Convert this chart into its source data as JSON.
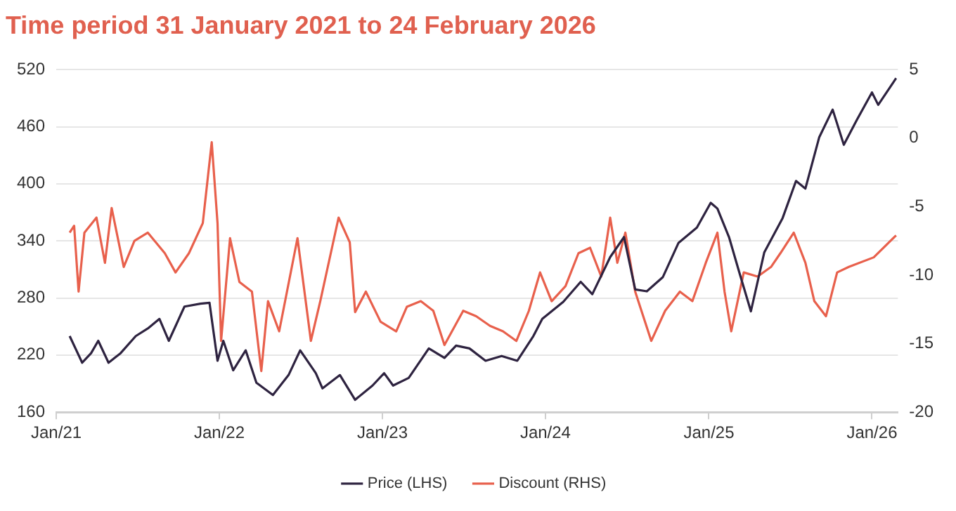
{
  "chart_data": {
    "type": "line",
    "title": "Time period 31 January 2021 to 24 February 2026",
    "xlim": [
      "2021-01-01",
      "2026-02-28"
    ],
    "xticks": [
      {
        "value": "2021-01-01",
        "label": "Jan/21"
      },
      {
        "value": "2022-01-01",
        "label": "Jan/22"
      },
      {
        "value": "2023-01-01",
        "label": "Jan/23"
      },
      {
        "value": "2024-01-01",
        "label": "Jan/24"
      },
      {
        "value": "2025-01-01",
        "label": "Jan/25"
      },
      {
        "value": "2026-01-01",
        "label": "Jan/26"
      }
    ],
    "ylim": [
      160,
      520
    ],
    "yticks": [
      160,
      220,
      280,
      340,
      400,
      460,
      520
    ],
    "y2lim": [
      -20,
      5
    ],
    "y2ticks": [
      -20,
      -15,
      -10,
      -5,
      0,
      5
    ],
    "grid": "y",
    "legend": "bottom",
    "marker": "none",
    "line_style": "solid",
    "series": [
      {
        "name": "Price (LHS)",
        "color": "#2e2340",
        "axis": "y",
        "x": [
          "2021-01-31",
          "2021-02-28",
          "2021-03-20",
          "2021-04-05",
          "2021-04-28",
          "2021-05-25",
          "2021-06-28",
          "2021-07-25",
          "2021-08-20",
          "2021-09-10",
          "2021-10-15",
          "2021-11-20",
          "2021-12-10",
          "2021-12-28",
          "2022-01-10",
          "2022-02-01",
          "2022-03-01",
          "2022-03-25",
          "2022-05-01",
          "2022-06-05",
          "2022-07-01",
          "2022-08-05",
          "2022-08-20",
          "2022-09-28",
          "2022-11-01",
          "2022-12-10",
          "2023-01-05",
          "2023-01-25",
          "2023-03-01",
          "2023-04-15",
          "2023-05-20",
          "2023-06-15",
          "2023-07-15",
          "2023-08-20",
          "2023-09-25",
          "2023-10-30",
          "2023-12-05",
          "2023-12-25",
          "2024-02-10",
          "2024-03-20",
          "2024-04-15",
          "2024-05-25",
          "2024-06-25",
          "2024-07-20",
          "2024-08-15",
          "2024-09-20",
          "2024-10-25",
          "2024-12-05",
          "2025-01-05",
          "2025-01-20",
          "2025-02-15",
          "2025-03-10",
          "2025-04-05",
          "2025-05-05",
          "2025-06-15",
          "2025-07-15",
          "2025-08-05",
          "2025-09-05",
          "2025-10-05",
          "2025-10-30",
          "2025-11-28",
          "2026-01-01",
          "2026-01-15",
          "2026-02-24"
        ],
        "values": [
          240,
          212,
          222,
          235,
          212,
          222,
          240,
          248,
          258,
          235,
          271,
          274,
          275,
          214,
          235,
          204,
          225,
          191,
          178,
          199,
          225,
          201,
          185,
          199,
          173,
          188,
          201,
          188,
          196,
          227,
          217,
          230,
          227,
          214,
          219,
          214,
          240,
          258,
          276,
          297,
          284,
          323,
          344,
          289,
          287,
          302,
          338,
          354,
          380,
          374,
          344,
          307,
          266,
          328,
          364,
          403,
          395,
          449,
          478,
          441,
          467,
          496,
          483,
          511
        ]
      },
      {
        "name": "Discount (RHS)",
        "color": "#e8604c",
        "axis": "y2",
        "x": [
          "2021-01-31",
          "2021-02-10",
          "2021-02-20",
          "2021-03-05",
          "2021-04-01",
          "2021-04-20",
          "2021-05-05",
          "2021-06-01",
          "2021-06-25",
          "2021-07-25",
          "2021-09-01",
          "2021-09-25",
          "2021-10-25",
          "2021-11-25",
          "2021-12-15",
          "2021-12-28",
          "2022-01-05",
          "2022-01-25",
          "2022-02-15",
          "2022-03-15",
          "2022-04-05",
          "2022-04-20",
          "2022-05-15",
          "2022-06-25",
          "2022-07-25",
          "2022-08-15",
          "2022-09-25",
          "2022-10-20",
          "2022-11-01",
          "2022-11-25",
          "2022-12-28",
          "2023-02-01",
          "2023-02-25",
          "2023-03-28",
          "2023-04-25",
          "2023-05-20",
          "2023-07-01",
          "2023-07-30",
          "2023-08-30",
          "2023-09-28",
          "2023-10-28",
          "2023-11-25",
          "2023-12-20",
          "2024-01-15",
          "2024-02-15",
          "2024-03-15",
          "2024-04-10",
          "2024-05-05",
          "2024-05-25",
          "2024-06-10",
          "2024-06-28",
          "2024-07-20",
          "2024-08-25",
          "2024-09-25",
          "2024-10-28",
          "2024-11-25",
          "2024-12-25",
          "2025-01-20",
          "2025-02-05",
          "2025-02-20",
          "2025-03-20",
          "2025-04-20",
          "2025-05-20",
          "2025-06-10",
          "2025-07-10",
          "2025-08-05",
          "2025-08-25",
          "2025-09-20",
          "2025-10-15",
          "2025-11-10",
          "2026-01-05",
          "2026-02-24"
        ],
        "values": [
          -6.9,
          -6.4,
          -11.2,
          -6.9,
          -5.8,
          -9.1,
          -5.1,
          -9.4,
          -7.5,
          -6.9,
          -8.4,
          -9.8,
          -8.4,
          -6.2,
          -0.3,
          -6.2,
          -14.8,
          -7.3,
          -10.5,
          -11.2,
          -17.0,
          -11.9,
          -14.1,
          -7.3,
          -14.8,
          -11.9,
          -5.8,
          -7.6,
          -12.7,
          -11.2,
          -13.4,
          -14.1,
          -12.3,
          -11.9,
          -12.6,
          -15.1,
          -12.6,
          -13.0,
          -13.7,
          -14.1,
          -14.8,
          -12.6,
          -9.8,
          -11.9,
          -10.8,
          -8.4,
          -8.0,
          -10.1,
          -5.8,
          -9.1,
          -6.9,
          -11.2,
          -14.8,
          -12.6,
          -11.2,
          -11.9,
          -9.1,
          -6.9,
          -11.2,
          -14.1,
          -9.8,
          -10.1,
          -9.4,
          -8.4,
          -6.9,
          -9.1,
          -11.9,
          -13.0,
          -9.8,
          -9.4,
          -8.7,
          -7.1
        ]
      }
    ]
  }
}
